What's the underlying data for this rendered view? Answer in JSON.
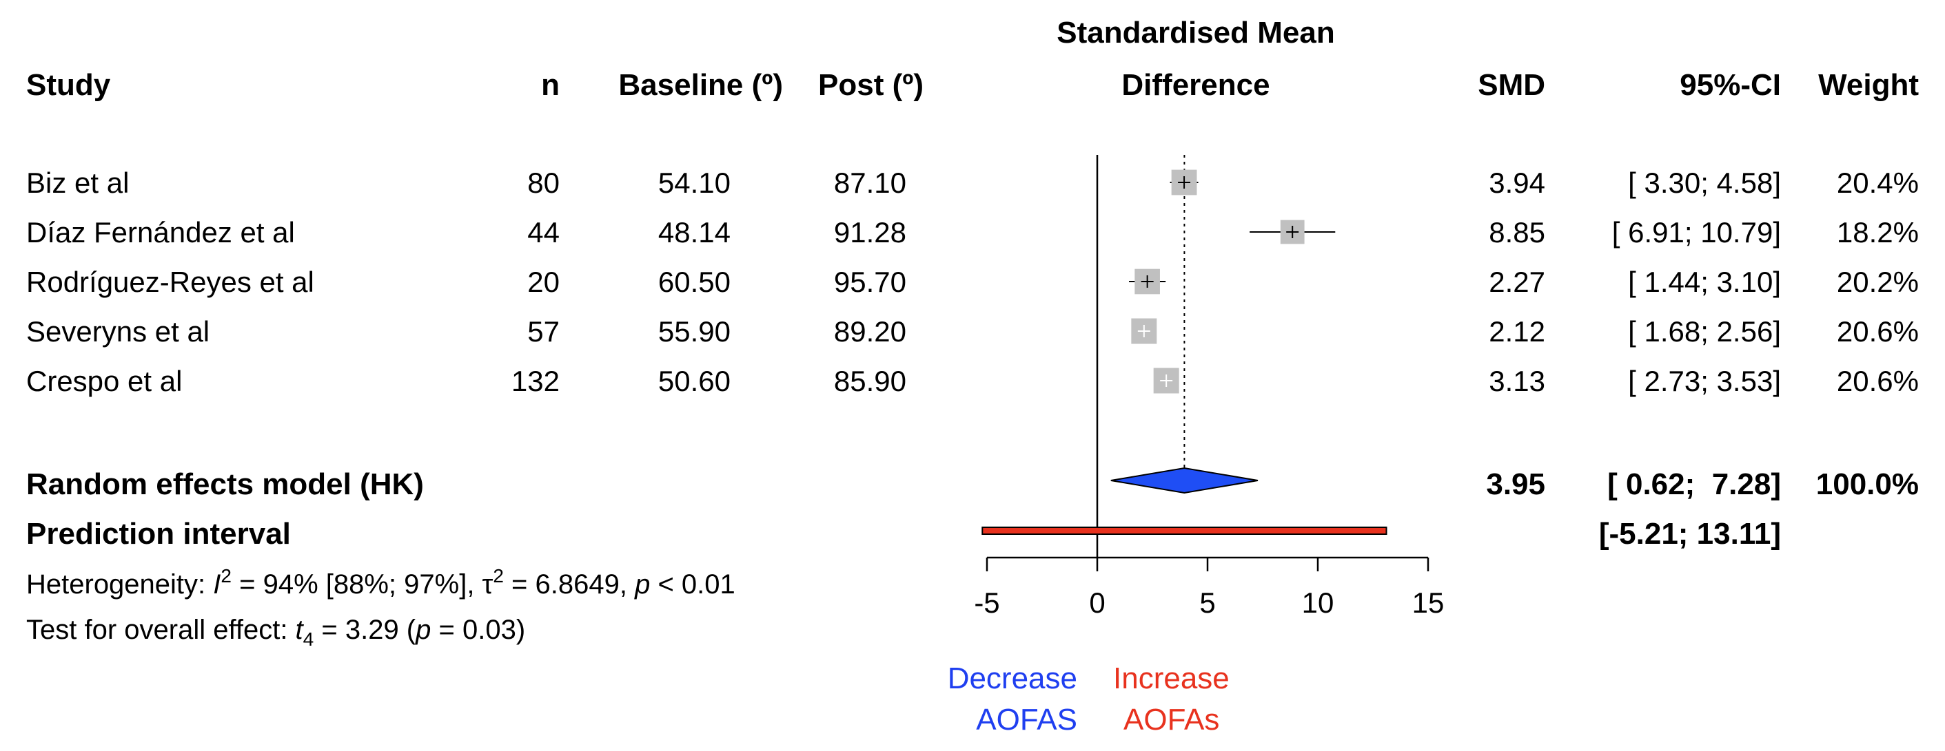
{
  "chart_data": {
    "type": "forest",
    "headers": {
      "study": "Study",
      "n": "n",
      "baseline": "Baseline (º)",
      "post": "Post (º)",
      "plot_title_line1": "Standardised Mean",
      "plot_title_line2": "Difference",
      "smd": "SMD",
      "ci": "95%-CI",
      "weight": "Weight"
    },
    "studies": [
      {
        "name": "Biz et al",
        "n": "80",
        "baseline": "54.10",
        "post": "87.10",
        "smd_text": "3.94",
        "ci_text": "[ 3.30;  4.58]",
        "weight_text": "20.4%",
        "smd": 3.94,
        "lower": 3.3,
        "upper": 4.58,
        "weight": 20.4
      },
      {
        "name": "Díaz Fernández et al",
        "n": "44",
        "baseline": "48.14",
        "post": "91.28",
        "smd_text": "8.85",
        "ci_text": "[ 6.91; 10.79]",
        "weight_text": "18.2%",
        "smd": 8.85,
        "lower": 6.91,
        "upper": 10.79,
        "weight": 18.2
      },
      {
        "name": "Rodríguez-Reyes et al",
        "n": "20",
        "baseline": "60.50",
        "post": "95.70",
        "smd_text": "2.27",
        "ci_text": "[ 1.44;  3.10]",
        "weight_text": "20.2%",
        "smd": 2.27,
        "lower": 1.44,
        "upper": 3.1,
        "weight": 20.2
      },
      {
        "name": "Severyns et al",
        "n": "57",
        "baseline": "55.90",
        "post": "89.20",
        "smd_text": "2.12",
        "ci_text": "[ 1.68;  2.56]",
        "weight_text": "20.6%",
        "smd": 2.12,
        "lower": 1.68,
        "upper": 2.56,
        "weight": 20.6
      },
      {
        "name": "Crespo et al",
        "n": "132",
        "baseline": "50.60",
        "post": "85.90",
        "smd_text": "3.13",
        "ci_text": "[ 2.73;  3.53]",
        "weight_text": "20.6%",
        "smd": 3.13,
        "lower": 2.73,
        "upper": 3.53,
        "weight": 20.6
      }
    ],
    "random_effects": {
      "label": "Random effects model (HK)",
      "smd_text": "3.95",
      "ci_text": "[ 0.62;  7.28]",
      "weight_text": "100.0%",
      "smd": 3.95,
      "lower": 0.62,
      "upper": 7.28
    },
    "prediction_interval": {
      "label": "Prediction interval",
      "ci_text": "[-5.21; 13.11]",
      "lower": -5.21,
      "upper": 13.11
    },
    "heterogeneity": {
      "prefix": "Heterogeneity: ",
      "i2_symbol": "I",
      "i2_exp": "2",
      "i2_value": " = 94% [88%; 97%], ",
      "tau_symbol": "τ",
      "tau_exp": "2",
      "tau_value": " = 6.8649, ",
      "p_symbol": "p",
      "p_value": " < 0.01"
    },
    "overall_effect": {
      "prefix": "Test for overall effect: ",
      "t_symbol": "t",
      "t_sub": "4",
      "t_value": " = 3.29 (",
      "p_symbol": "p",
      "p_value": " = 0.03)"
    },
    "x_axis": {
      "ticks": [
        -5,
        0,
        5,
        10,
        15
      ],
      "tick_labels": [
        "-5",
        "0",
        "5",
        "10",
        "15"
      ],
      "range": [
        -5,
        15
      ],
      "reference_line": 0
    },
    "direction_labels": {
      "left_line1": "Decrease",
      "left_line2": "AOFAS",
      "right_line1": "Increase",
      "right_line2": "AOFAs"
    },
    "colors": {
      "summary_diamond": "#1f4ef5",
      "prediction_bar": "#e8321e",
      "study_box": "#c0c0c0",
      "decrease_text": "#1f3ff0",
      "increase_text": "#e8321e"
    }
  }
}
